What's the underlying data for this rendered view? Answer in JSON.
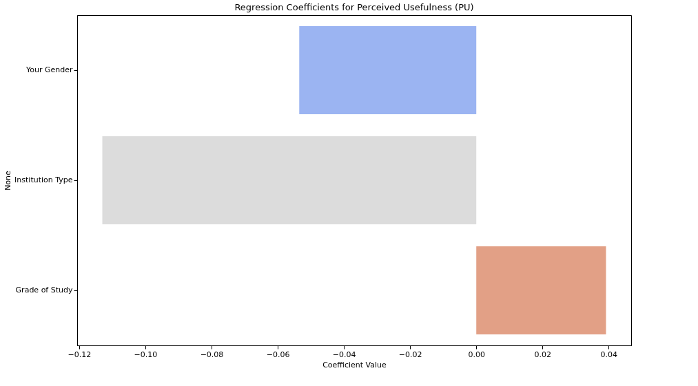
{
  "chart_data": {
    "type": "bar",
    "orientation": "horizontal",
    "title": "Regression Coefficients for Perceived Usefulness (PU)",
    "xlabel": "Coefficient Value",
    "ylabel": "None",
    "categories": [
      "Your Gender",
      "Institution Type",
      "Grade of Study"
    ],
    "values": [
      -0.0535,
      -0.113,
      0.0392
    ],
    "colors": [
      "#9bb4f2",
      "#dcdcdc",
      "#e2a086"
    ],
    "xlim": [
      -0.1206,
      0.0468
    ],
    "xticks": [
      {
        "value": -0.12,
        "label": "−0.12"
      },
      {
        "value": -0.1,
        "label": "−0.10"
      },
      {
        "value": -0.08,
        "label": "−0.08"
      },
      {
        "value": -0.06,
        "label": "−0.06"
      },
      {
        "value": -0.04,
        "label": "−0.04"
      },
      {
        "value": -0.02,
        "label": "−0.02"
      },
      {
        "value": 0,
        "label": "0.00"
      },
      {
        "value": 0.02,
        "label": "0.02"
      },
      {
        "value": 0.04,
        "label": "0.04"
      }
    ],
    "grid": false
  }
}
